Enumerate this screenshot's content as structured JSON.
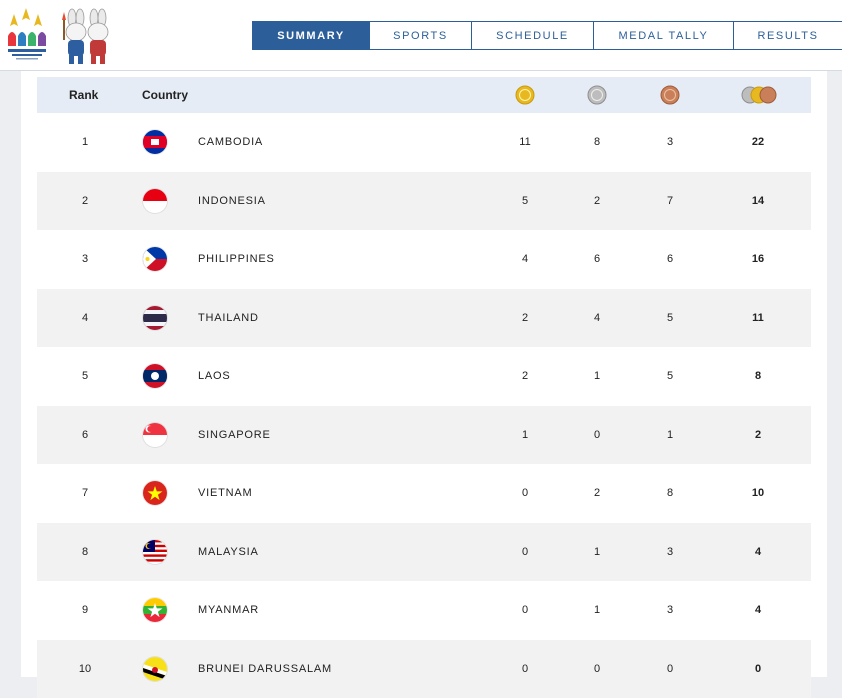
{
  "nav": {
    "tabs": [
      {
        "label": "SUMMARY",
        "active": true
      },
      {
        "label": "SPORTS",
        "active": false
      },
      {
        "label": "SCHEDULE",
        "active": false
      },
      {
        "label": "MEDAL TALLY",
        "active": false
      },
      {
        "label": "RESULTS",
        "active": false
      }
    ]
  },
  "table": {
    "headers": {
      "rank": "Rank",
      "country": "Country"
    },
    "medal_icons": [
      "gold-medal-icon",
      "silver-medal-icon",
      "bronze-medal-icon",
      "total-medals-icon"
    ],
    "rows": [
      {
        "rank": "1",
        "country": "CAMBODIA",
        "gold": "11",
        "silver": "8",
        "bronze": "3",
        "total": "22"
      },
      {
        "rank": "2",
        "country": "INDONESIA",
        "gold": "5",
        "silver": "2",
        "bronze": "7",
        "total": "14"
      },
      {
        "rank": "3",
        "country": "PHILIPPINES",
        "gold": "4",
        "silver": "6",
        "bronze": "6",
        "total": "16"
      },
      {
        "rank": "4",
        "country": "THAILAND",
        "gold": "2",
        "silver": "4",
        "bronze": "5",
        "total": "11"
      },
      {
        "rank": "5",
        "country": "LAOS",
        "gold": "2",
        "silver": "1",
        "bronze": "5",
        "total": "8"
      },
      {
        "rank": "6",
        "country": "SINGAPORE",
        "gold": "1",
        "silver": "0",
        "bronze": "1",
        "total": "2"
      },
      {
        "rank": "7",
        "country": "VIETNAM",
        "gold": "0",
        "silver": "2",
        "bronze": "8",
        "total": "10"
      },
      {
        "rank": "8",
        "country": "MALAYSIA",
        "gold": "0",
        "silver": "1",
        "bronze": "3",
        "total": "4"
      },
      {
        "rank": "9",
        "country": "MYANMAR",
        "gold": "0",
        "silver": "1",
        "bronze": "3",
        "total": "4"
      },
      {
        "rank": "10",
        "country": "BRUNEI DARUSSALAM",
        "gold": "0",
        "silver": "0",
        "bronze": "0",
        "total": "0"
      }
    ]
  },
  "colors": {
    "nav_accent": "#2c5f99",
    "header_row_bg": "#e6ecf5",
    "alt_row_bg": "#f2f2f2",
    "gold": "#e8b820",
    "silver": "#b8b8b8",
    "bronze": "#c9805a"
  }
}
